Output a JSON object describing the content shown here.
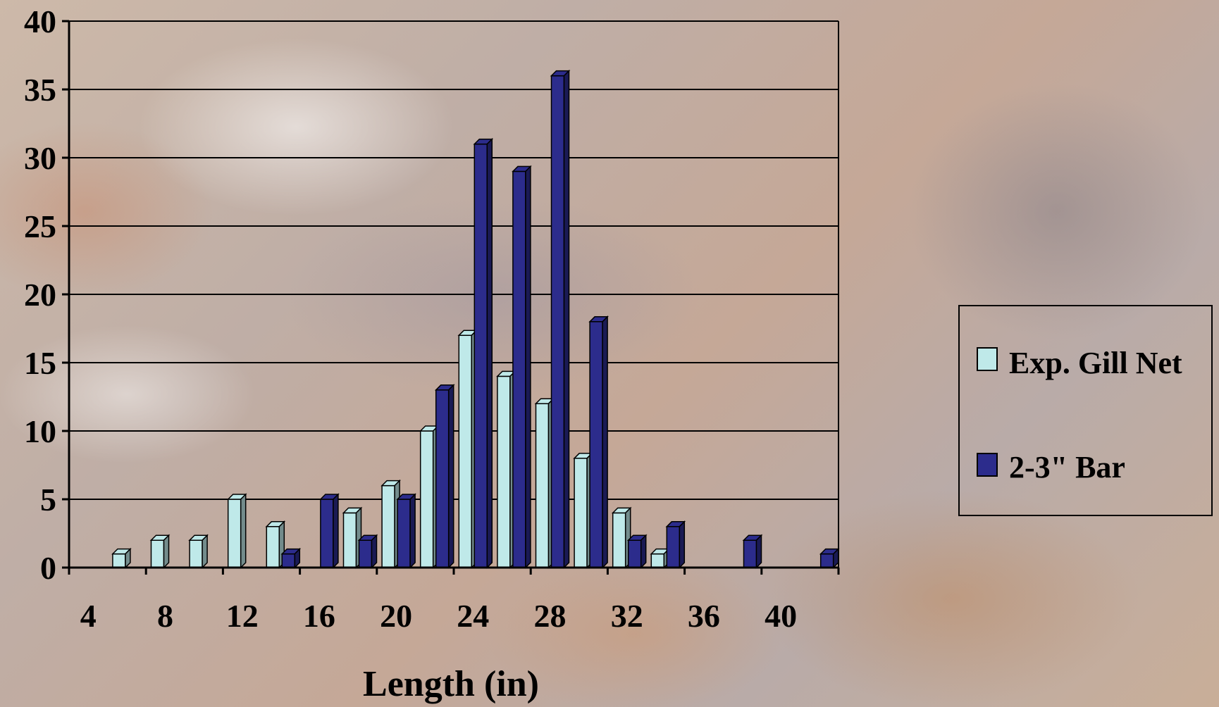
{
  "chart_data": {
    "type": "bar",
    "x": [
      4,
      6,
      8,
      10,
      12,
      14,
      16,
      18,
      20,
      22,
      24,
      26,
      28,
      30,
      32,
      34,
      36,
      38,
      40,
      42
    ],
    "series": [
      {
        "name": "Exp. Gill Net",
        "color": "#bfe9e9",
        "values": [
          0,
          1,
          2,
          2,
          5,
          3,
          0,
          4,
          6,
          10,
          17,
          14,
          12,
          8,
          4,
          1,
          0,
          0,
          0,
          0
        ]
      },
      {
        "name": "2-3\" Bar",
        "color": "#2c2c8c",
        "values": [
          0,
          0,
          0,
          0,
          0,
          1,
          5,
          2,
          5,
          13,
          31,
          29,
          36,
          18,
          2,
          3,
          0,
          2,
          0,
          1
        ]
      }
    ],
    "xticks": [
      "4",
      "8",
      "12",
      "16",
      "20",
      "24",
      "28",
      "32",
      "36",
      "40"
    ],
    "yticks": [
      "0",
      "5",
      "10",
      "15",
      "20",
      "25",
      "30",
      "35",
      "40"
    ],
    "ylim": [
      0,
      40
    ],
    "xlabel": "Length (in)",
    "ylabel": "",
    "grid": true,
    "legend": "right"
  }
}
